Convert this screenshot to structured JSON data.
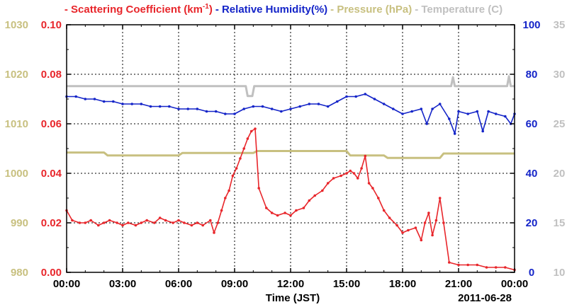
{
  "chart_data": {
    "type": "line",
    "legend": [
      {
        "dash": "-",
        "label": "Scattering Coefficient (km",
        "sup": "-1",
        "suffix": ")",
        "color": "#e8262b"
      },
      {
        "dash": "-",
        "label": "Relative Humidity(%)",
        "sup": "",
        "suffix": "",
        "color": "#1424c8"
      },
      {
        "dash": "-",
        "label": "Pressure (hPa)",
        "sup": "",
        "suffix": "",
        "color": "#c8c080"
      },
      {
        "dash": "-",
        "label": "Temperature (",
        "sup": "",
        "suffix": "C)",
        "color": "#c0c0c0"
      }
    ],
    "xlabel": "Time (JST)",
    "date_label": "2011-06-28",
    "x_range_hours": [
      0,
      24
    ],
    "x_ticks": [
      "00:00",
      "03:00",
      "06:00",
      "09:00",
      "12:00",
      "15:00",
      "18:00",
      "21:00",
      "00:00"
    ],
    "axes": {
      "pressure": {
        "range": [
          980,
          1030
        ],
        "ticks": [
          "980",
          "990",
          "1000",
          "1010",
          "1020",
          "1030"
        ],
        "color": "#c8c080"
      },
      "scattering": {
        "range": [
          0.0,
          0.1
        ],
        "ticks": [
          "0.00",
          "0.02",
          "0.04",
          "0.06",
          "0.08",
          "0.10"
        ],
        "color": "#e8262b"
      },
      "humidity": {
        "range": [
          0,
          100
        ],
        "ticks": [
          "0",
          "20",
          "40",
          "60",
          "80",
          "100"
        ],
        "color": "#1424c8"
      },
      "temperature": {
        "range": [
          10,
          35
        ],
        "ticks": [
          "10",
          "15",
          "20",
          "25",
          "30",
          "35"
        ],
        "color": "#c0c0c0"
      }
    },
    "grid": true,
    "series": [
      {
        "name": "Scattering Coefficient",
        "axis": "scattering",
        "color": "#e8262b",
        "markers": true,
        "x": [
          0,
          0.3,
          0.7,
          1.0,
          1.3,
          1.7,
          2.0,
          2.3,
          2.7,
          3.0,
          3.3,
          3.7,
          4.0,
          4.3,
          4.7,
          5.0,
          5.3,
          5.7,
          6.0,
          6.3,
          6.7,
          7.0,
          7.3,
          7.7,
          7.9,
          8.1,
          8.3,
          8.5,
          8.7,
          8.9,
          9.1,
          9.3,
          9.5,
          9.7,
          9.9,
          10.1,
          10.3,
          10.7,
          11.0,
          11.3,
          11.7,
          12.0,
          12.3,
          12.7,
          13.0,
          13.3,
          13.7,
          14.0,
          14.3,
          14.7,
          15.0,
          15.2,
          15.4,
          15.6,
          15.8,
          16.0,
          16.2,
          16.4,
          16.7,
          17.0,
          17.3,
          17.7,
          18.0,
          18.3,
          18.7,
          19.0,
          19.2,
          19.4,
          19.6,
          19.8,
          20.0,
          20.2,
          20.5,
          21.0,
          21.5,
          22.0,
          22.5,
          23.0,
          23.5,
          24.0
        ],
        "values": [
          0.025,
          0.021,
          0.02,
          0.02,
          0.021,
          0.019,
          0.02,
          0.021,
          0.02,
          0.019,
          0.02,
          0.019,
          0.02,
          0.021,
          0.02,
          0.022,
          0.021,
          0.02,
          0.021,
          0.02,
          0.019,
          0.02,
          0.019,
          0.021,
          0.016,
          0.02,
          0.025,
          0.03,
          0.033,
          0.039,
          0.042,
          0.046,
          0.05,
          0.054,
          0.057,
          0.058,
          0.034,
          0.026,
          0.024,
          0.023,
          0.024,
          0.023,
          0.025,
          0.026,
          0.029,
          0.031,
          0.033,
          0.036,
          0.038,
          0.039,
          0.04,
          0.041,
          0.04,
          0.038,
          0.042,
          0.047,
          0.036,
          0.034,
          0.03,
          0.025,
          0.022,
          0.019,
          0.016,
          0.017,
          0.018,
          0.013,
          0.02,
          0.024,
          0.015,
          0.021,
          0.03,
          0.02,
          0.004,
          0.003,
          0.003,
          0.003,
          0.002,
          0.002,
          0.002,
          0.001
        ]
      },
      {
        "name": "Relative Humidity",
        "axis": "humidity",
        "color": "#1424c8",
        "markers": true,
        "x": [
          0,
          0.5,
          1.0,
          1.5,
          2.0,
          2.5,
          3.0,
          3.5,
          4.0,
          4.5,
          5.0,
          5.5,
          6.0,
          6.5,
          7.0,
          7.5,
          8.0,
          8.5,
          9.0,
          9.5,
          10.0,
          10.5,
          11.0,
          11.5,
          12.0,
          12.5,
          13.0,
          13.5,
          14.0,
          14.5,
          15.0,
          15.5,
          16.0,
          16.5,
          17.0,
          17.5,
          18.0,
          18.5,
          19.0,
          19.3,
          19.6,
          20.0,
          20.5,
          20.8,
          21.0,
          21.5,
          22.0,
          22.3,
          22.6,
          23.0,
          23.5,
          23.8,
          24.0
        ],
        "values": [
          71,
          71,
          70,
          70,
          69,
          69,
          68,
          68,
          68,
          67,
          67,
          67,
          66,
          66,
          66,
          65,
          65,
          64,
          64,
          66,
          67,
          67,
          66,
          65,
          66,
          67,
          68,
          68,
          67,
          69,
          71,
          71,
          72,
          70,
          68,
          66,
          64,
          65,
          66,
          60,
          66,
          68,
          62,
          56,
          65,
          64,
          65,
          57,
          65,
          64,
          63,
          60,
          64
        ]
      },
      {
        "name": "Pressure",
        "axis": "pressure",
        "color": "#c8c080",
        "markers": false,
        "x": [
          0,
          2.0,
          2.2,
          6.0,
          6.2,
          10.0,
          10.2,
          15.0,
          15.2,
          17.0,
          17.2,
          20.0,
          20.2,
          24.0
        ],
        "values": [
          1004.2,
          1004.2,
          1003.6,
          1003.6,
          1004.1,
          1004.1,
          1004.5,
          1004.5,
          1003.6,
          1003.6,
          1003.1,
          1003.1,
          1004.0,
          1004.0
        ]
      },
      {
        "name": "Temperature",
        "axis": "temperature",
        "color": "#c0c0c0",
        "markers": false,
        "x": [
          0,
          9.6,
          9.7,
          9.95,
          10.05,
          20.6,
          20.7,
          20.8,
          23.6,
          23.7,
          23.8,
          24.0
        ],
        "values": [
          28.8,
          28.8,
          27.8,
          27.8,
          28.8,
          28.8,
          29.7,
          28.8,
          28.8,
          29.8,
          28.8,
          28.8
        ]
      }
    ]
  }
}
